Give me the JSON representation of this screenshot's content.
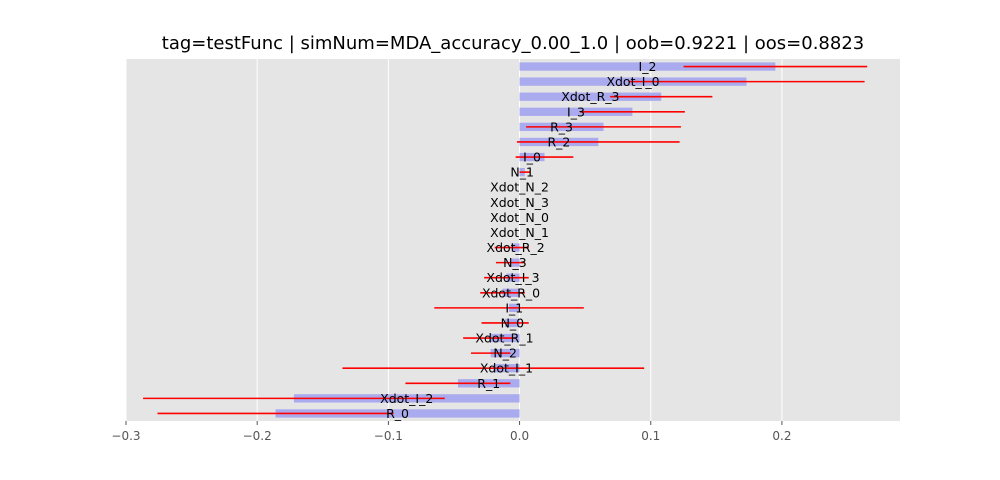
{
  "chart_data": {
    "type": "bar",
    "orientation": "horizontal",
    "title": "tag=testFunc | simNum=MDA_accuracy_0.00_1.0 | oob=0.9221 | oos=0.8823",
    "xlabel": "",
    "ylabel": "",
    "xlim": [
      -0.3,
      0.29
    ],
    "xticks": [
      -0.3,
      -0.2,
      -0.1,
      0.0,
      0.1,
      0.2
    ],
    "xtick_labels": [
      "−0.3",
      "−0.2",
      "−0.1",
      "0.0",
      "0.1",
      "0.2"
    ],
    "grid": true,
    "bar_color": "#aaaaee",
    "error_color": "#ff0000",
    "background_color": "#e5e5e5",
    "categories": [
      "I_2",
      "Xdot_I_0",
      "Xdot_R_3",
      "I_3",
      "R_3",
      "R_2",
      "I_0",
      "N_1",
      "Xdot_N_2",
      "Xdot_N_3",
      "Xdot_N_0",
      "Xdot_N_1",
      "Xdot_R_2",
      "N_3",
      "Xdot_I_3",
      "Xdot_R_0",
      "I_1",
      "N_0",
      "Xdot_R_1",
      "N_2",
      "Xdot_I_1",
      "R_1",
      "Xdot_I_2",
      "R_0"
    ],
    "values": [
      0.195,
      0.173,
      0.108,
      0.086,
      0.064,
      0.06,
      0.019,
      0.004,
      0.0,
      0.0,
      0.0,
      0.0,
      -0.006,
      -0.007,
      -0.01,
      -0.013,
      -0.008,
      -0.011,
      -0.023,
      -0.022,
      -0.02,
      -0.047,
      -0.172,
      -0.186
    ],
    "errors": [
      0.07,
      0.09,
      0.039,
      0.04,
      0.059,
      0.062,
      0.022,
      0.004,
      0.0,
      0.0,
      0.0,
      0.0,
      0.013,
      0.011,
      0.017,
      0.017,
      0.057,
      0.018,
      0.02,
      0.015,
      0.115,
      0.04,
      0.115,
      0.09
    ]
  }
}
